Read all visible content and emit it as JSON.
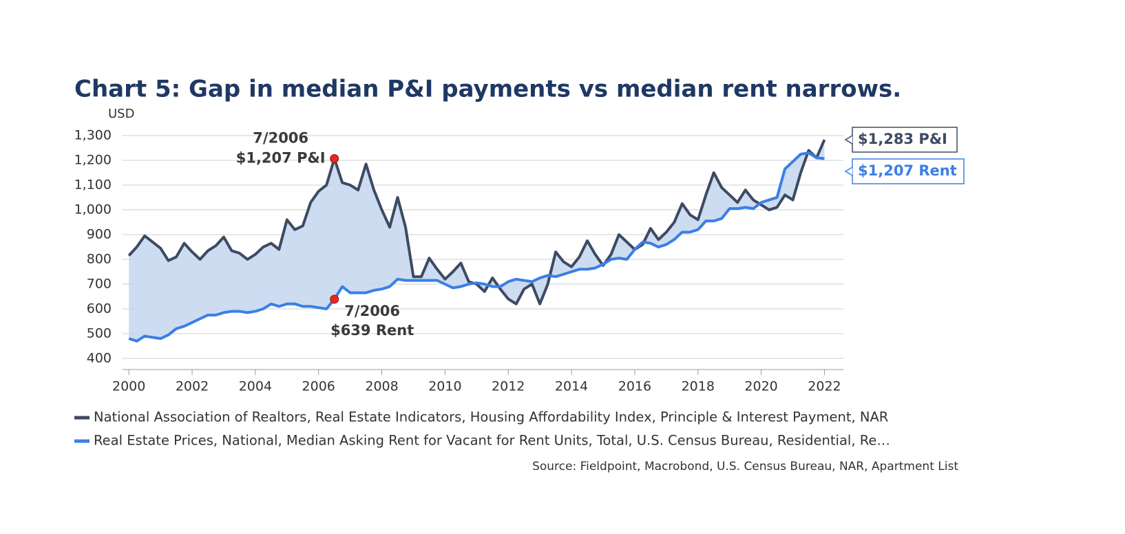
{
  "chart_data": {
    "type": "line",
    "title": "Chart 5: Gap in median P&I payments vs median rent narrows.",
    "y_label": "USD",
    "source": "Source: Fieldpoint, Macrobond, U.S. Census Bureau, NAR, Apartment List",
    "x": [
      2000,
      2000.25,
      2000.5,
      2000.75,
      2001,
      2001.25,
      2001.5,
      2001.75,
      2002,
      2002.25,
      2002.5,
      2002.75,
      2003,
      2003.25,
      2003.5,
      2003.75,
      2004,
      2004.25,
      2004.5,
      2004.75,
      2005,
      2005.25,
      2005.5,
      2005.75,
      2006,
      2006.25,
      2006.5,
      2006.75,
      2007,
      2007.25,
      2007.5,
      2007.75,
      2008,
      2008.25,
      2008.5,
      2008.75,
      2009,
      2009.25,
      2009.5,
      2009.75,
      2010,
      2010.25,
      2010.5,
      2010.75,
      2011,
      2011.25,
      2011.5,
      2011.75,
      2012,
      2012.25,
      2012.5,
      2012.75,
      2013,
      2013.25,
      2013.5,
      2013.75,
      2014,
      2014.25,
      2014.5,
      2014.75,
      2015,
      2015.25,
      2015.5,
      2015.75,
      2016,
      2016.25,
      2016.5,
      2016.75,
      2017,
      2017.25,
      2017.5,
      2017.75,
      2018,
      2018.25,
      2018.5,
      2018.75,
      2019,
      2019.25,
      2019.5,
      2019.75,
      2020,
      2020.25,
      2020.5,
      2020.75,
      2021,
      2021.25,
      2021.5,
      2021.75,
      2022
    ],
    "series": [
      {
        "name": "National Association of Realtors, Real Estate Indicators, Housing Affordability Index, Principle & Interest Payment, NAR",
        "color": "#3d4a63",
        "values": [
          815,
          850,
          895,
          870,
          845,
          795,
          810,
          865,
          830,
          800,
          835,
          855,
          890,
          835,
          825,
          800,
          820,
          850,
          865,
          840,
          960,
          920,
          935,
          1030,
          1075,
          1100,
          1207,
          1110,
          1100,
          1080,
          1185,
          1080,
          1000,
          930,
          1050,
          930,
          730,
          730,
          805,
          760,
          720,
          750,
          785,
          710,
          700,
          670,
          725,
          680,
          640,
          620,
          680,
          700,
          620,
          700,
          830,
          790,
          770,
          810,
          875,
          820,
          775,
          820,
          900,
          870,
          840,
          860,
          925,
          880,
          910,
          950,
          1025,
          980,
          960,
          1060,
          1150,
          1090,
          1060,
          1030,
          1080,
          1040,
          1020,
          1000,
          1010,
          1060,
          1040,
          1150,
          1240,
          1210,
          1283
        ],
        "annotation": {
          "at": 2006.5,
          "text": [
            "7/2006",
            "$1,207 P&I"
          ]
        },
        "end_label": "$1,283 P&I"
      },
      {
        "name": "Real Estate Prices, National, Median Asking Rent for Vacant for Rent Units, Total, U.S. Census Bureau, Residential, Re…",
        "color": "#3a7fe6",
        "values": [
          480,
          470,
          490,
          485,
          480,
          495,
          520,
          530,
          545,
          560,
          575,
          575,
          585,
          590,
          590,
          585,
          590,
          600,
          620,
          610,
          620,
          620,
          610,
          610,
          605,
          600,
          639,
          690,
          665,
          665,
          665,
          675,
          680,
          690,
          720,
          715,
          715,
          715,
          715,
          715,
          700,
          685,
          690,
          700,
          705,
          700,
          690,
          690,
          710,
          720,
          715,
          710,
          725,
          735,
          730,
          740,
          750,
          760,
          760,
          765,
          780,
          800,
          805,
          800,
          840,
          870,
          865,
          850,
          860,
          880,
          910,
          910,
          920,
          955,
          955,
          965,
          1005,
          1005,
          1010,
          1005,
          1030,
          1040,
          1050,
          1165,
          1195,
          1225,
          1230,
          1210,
          1207
        ],
        "annotation": {
          "at": 2006.5,
          "text": [
            "7/2006",
            "$639 Rent"
          ]
        },
        "end_label": "$1,207 Rent"
      }
    ],
    "xlim": [
      1999.8,
      2022.6
    ],
    "xticks": [
      2000,
      2002,
      2004,
      2006,
      2008,
      2010,
      2012,
      2014,
      2016,
      2018,
      2020,
      2022
    ],
    "ylim": [
      355,
      1300
    ],
    "yticks": [
      400,
      {
        "value": 500,
        "label": "500"
      },
      600,
      700,
      800,
      900,
      {
        "value": 1000,
        "label": "1,000"
      },
      {
        "value": 1100,
        "label": "1,100"
      },
      {
        "value": 1200,
        "label": "1,200"
      },
      {
        "value": 1300,
        "label": "1,300"
      }
    ],
    "grid": true,
    "fill_between": true,
    "marker_color": "#e8281e"
  }
}
